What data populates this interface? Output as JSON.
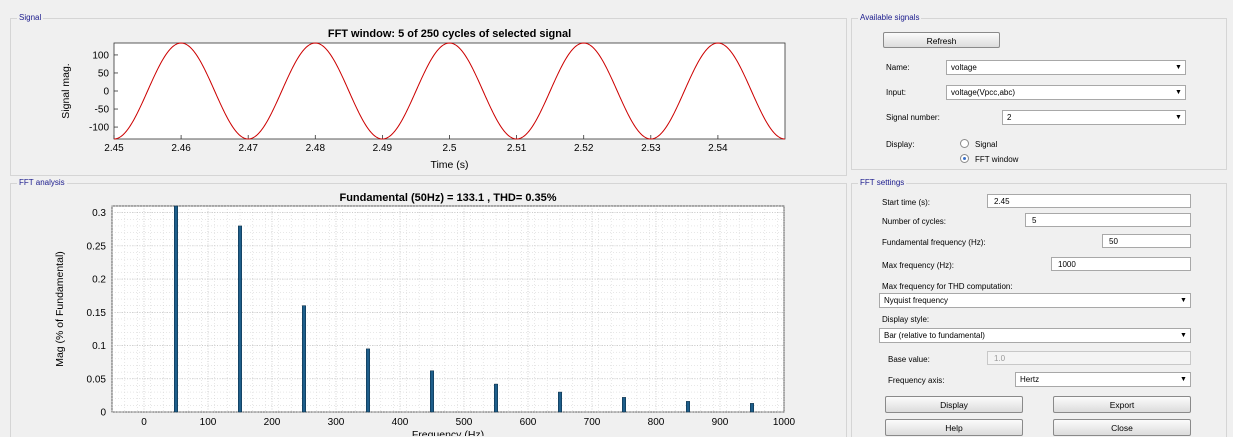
{
  "signal_panel": {
    "title": "Signal"
  },
  "fft_panel": {
    "title": "FFT analysis"
  },
  "available_signals": {
    "title": "Available signals",
    "refresh_label": "Refresh",
    "name_label": "Name:",
    "name_value": "voltage",
    "input_label": "Input:",
    "input_value": "voltage(Vpcc,abc)",
    "signal_number_label": "Signal number:",
    "signal_number_value": "2",
    "display_label": "Display:",
    "display_options": [
      "Signal",
      "FFT window"
    ],
    "display_selected": "FFT window"
  },
  "fft_settings": {
    "title": "FFT settings",
    "start_time_label": "Start time (s):",
    "start_time_value": "2.45",
    "cycles_label": "Number of cycles:",
    "cycles_value": "5",
    "fund_freq_label": "Fundamental frequency (Hz):",
    "fund_freq_value": "50",
    "max_freq_label": "Max frequency (Hz):",
    "max_freq_value": "1000",
    "thd_label": "Max frequency for THD computation:",
    "thd_value": "Nyquist frequency",
    "display_style_label": "Display style:",
    "display_style_value": "Bar (relative to fundamental)",
    "base_value_label": "Base value:",
    "base_value_value": "1.0",
    "freq_axis_label": "Frequency axis:",
    "freq_axis_value": "Hertz",
    "display_button": "Display",
    "export_button": "Export",
    "help_button": "Help",
    "close_button": "Close"
  },
  "colors": {
    "signal_line": "#cc0000",
    "bar": "#1f5f8b",
    "group_title": "#1a1a8c"
  },
  "chart_data": [
    {
      "type": "line",
      "title": "FFT window: 5 of 250 cycles of selected signal",
      "xlabel": "Time (s)",
      "ylabel": "Signal mag.",
      "xlim": [
        2.45,
        2.55
      ],
      "ylim": [
        -133.1,
        133.1
      ],
      "xticks": [
        "2.45",
        "2.46",
        "2.47",
        "2.48",
        "2.49",
        "2.5",
        "2.51",
        "2.52",
        "2.53",
        "2.54"
      ],
      "yticks": [
        "100",
        "50",
        "0",
        "-50",
        "-100"
      ],
      "series": [
        {
          "amplitude": 133.1,
          "frequency_hz": 50,
          "phase_deg": 90
        }
      ],
      "grid": false
    },
    {
      "type": "bar",
      "title": "Fundamental (50Hz) = 133.1 , THD= 0.35%",
      "xlabel": "Frequency (Hz)",
      "ylabel": "Mag (% of Fundamental)",
      "xlim": [
        -50,
        1000
      ],
      "ylim": [
        0,
        0.31
      ],
      "xticks": [
        "0",
        "100",
        "200",
        "300",
        "400",
        "500",
        "600",
        "700",
        "800",
        "900",
        "1000"
      ],
      "yticks": [
        "0.3",
        "0.25",
        "0.2",
        "0.15",
        "0.1",
        "0.05",
        "0"
      ],
      "x": [
        50,
        150,
        250,
        350,
        450,
        550,
        650,
        750,
        850,
        950
      ],
      "values": [
        0.31,
        0.28,
        0.16,
        0.095,
        0.062,
        0.042,
        0.03,
        0.022,
        0.016,
        0.013
      ],
      "grid": true
    }
  ]
}
